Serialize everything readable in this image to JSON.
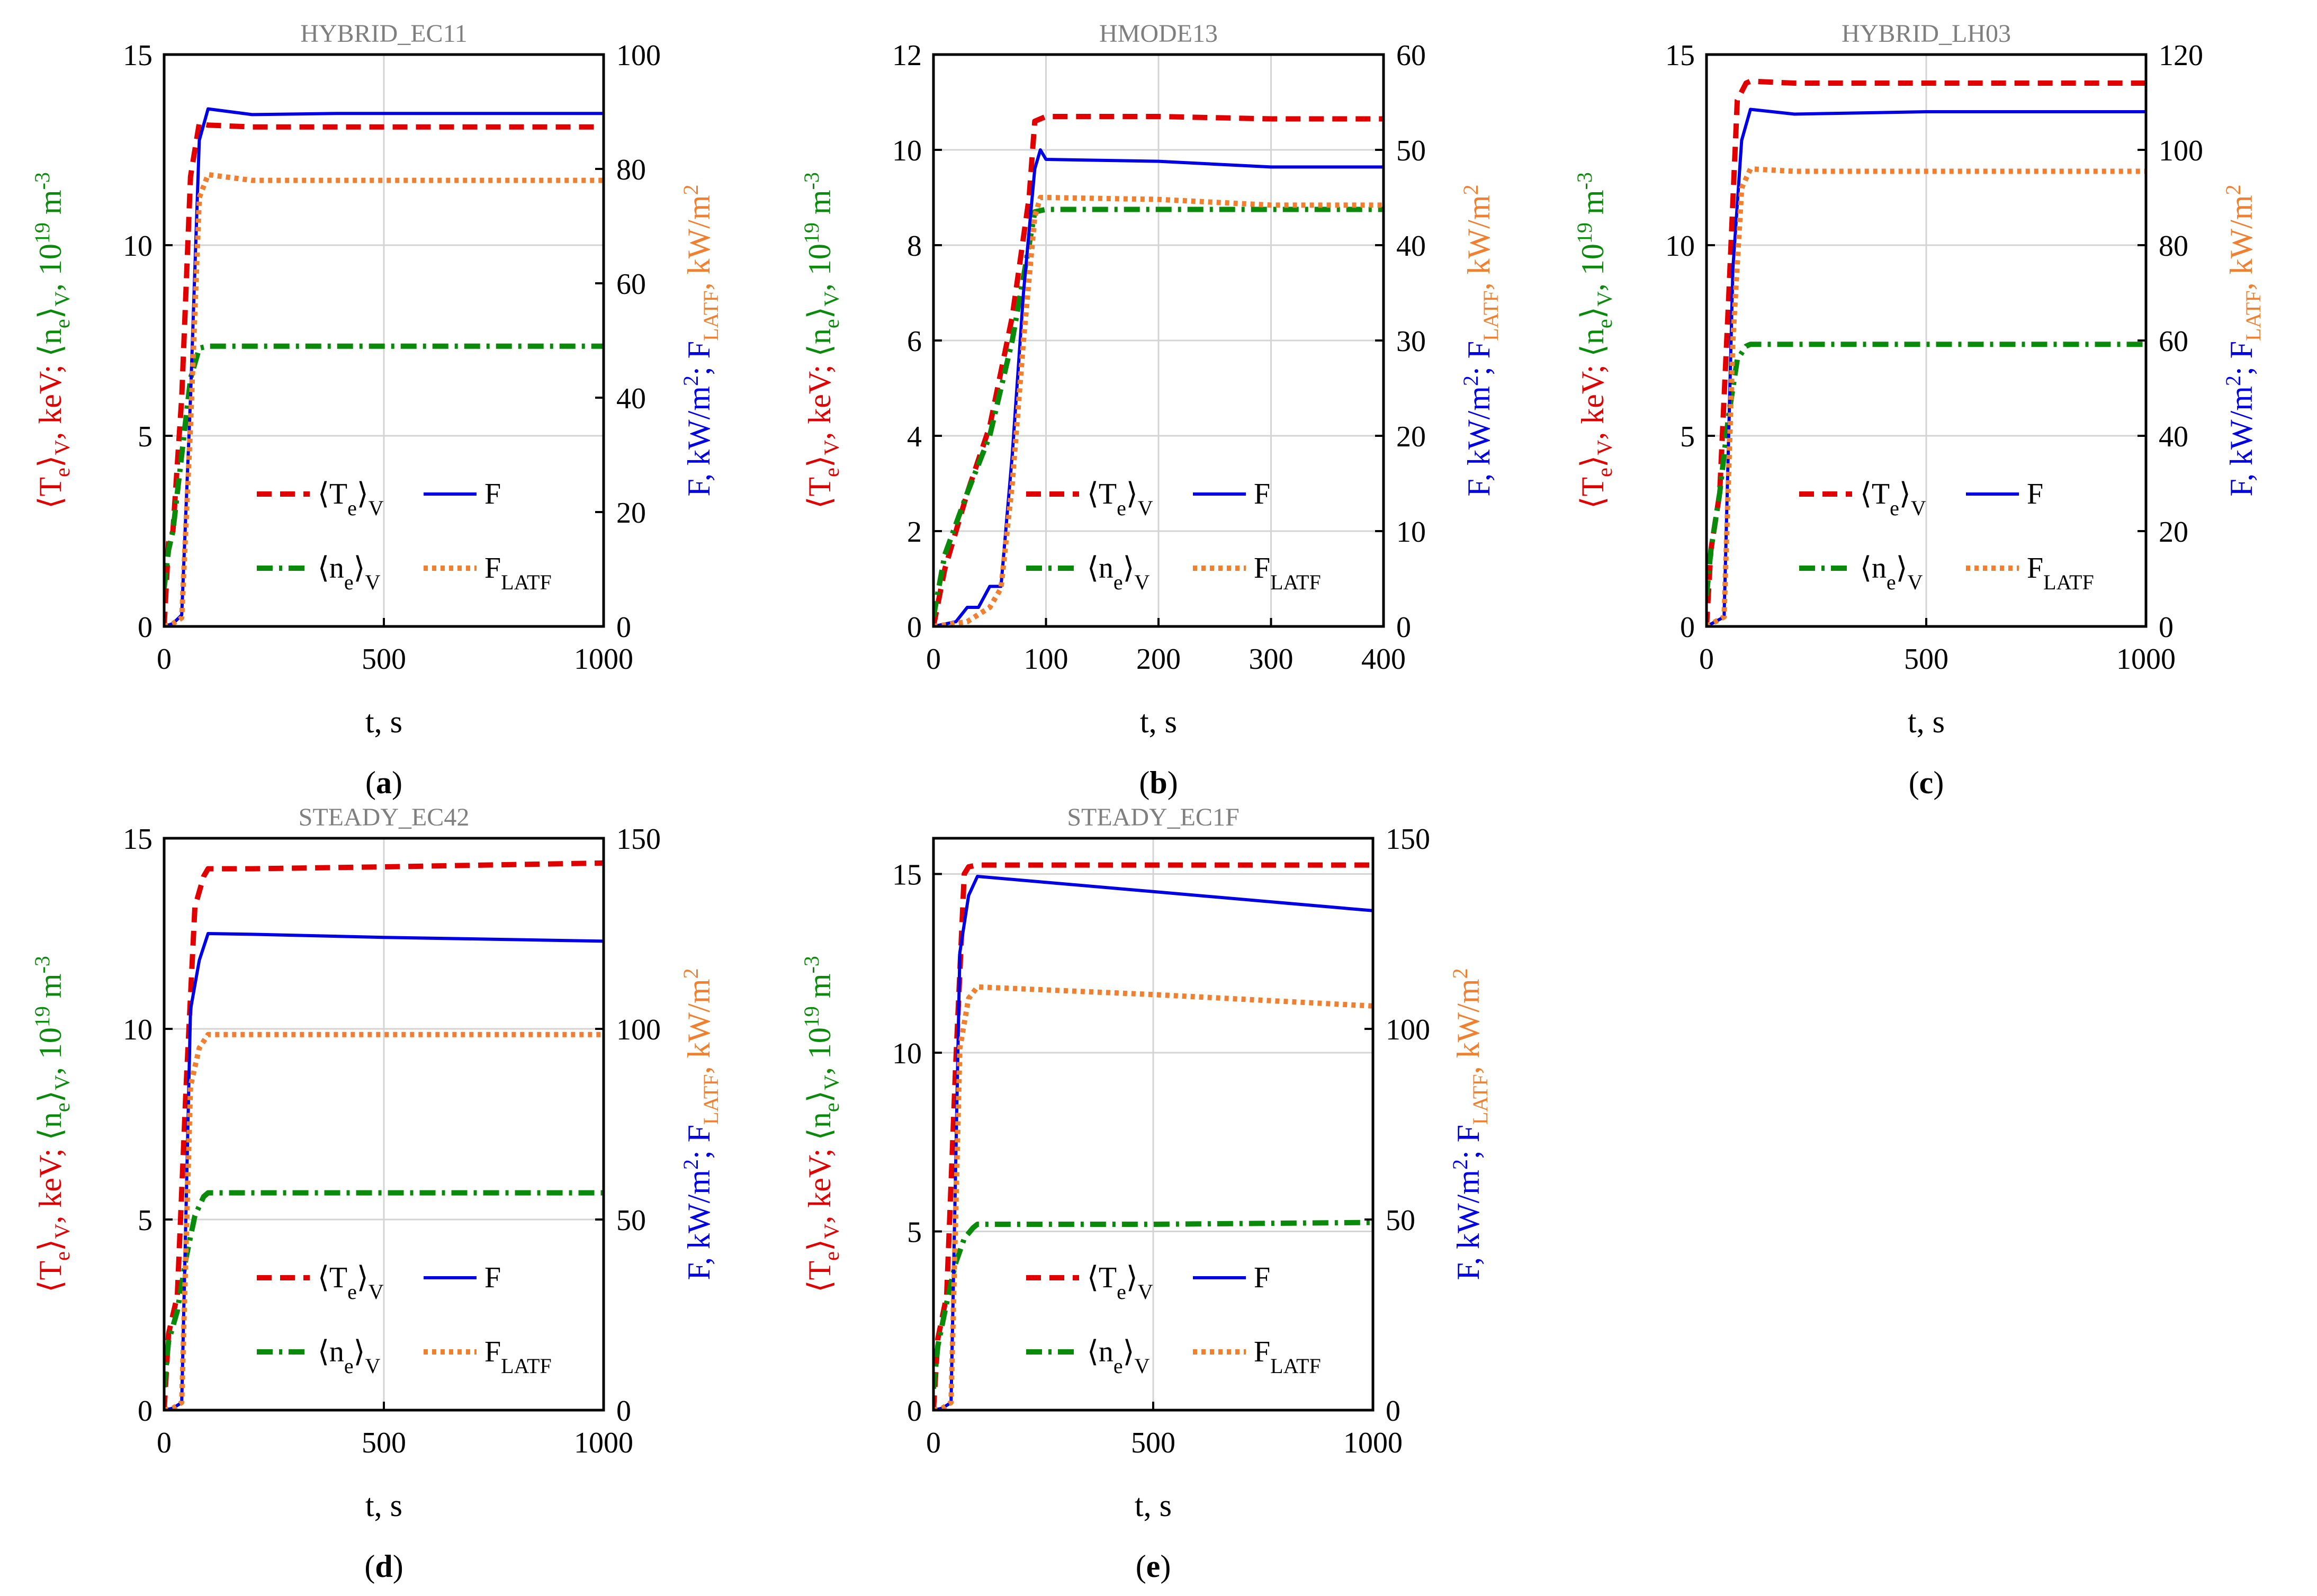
{
  "colors": {
    "T": "#e00000",
    "n": "#0a8a0a",
    "F": "#0000e6",
    "FL": "#f08030",
    "grid": "#d4d4d4",
    "title": "#7f7f7f"
  },
  "labels": {
    "xlabel": "t, s",
    "ylabel_left": {
      "t1": "⟨T",
      "t1s": "e",
      "t2": "⟩",
      "t2s": "V",
      "t3": ", keV; ",
      "t4": "⟨n",
      "t4s": "e",
      "t5": "⟩",
      "t5s": "V",
      "t6": ", 10",
      "t6p": "19",
      "t7": " m",
      "t7p": "-3"
    },
    "ylabel_right": {
      "r1": "F, kW/m",
      "r1p": "2",
      "r2": "; F",
      "r2s": "LATF",
      "r3": ", kW/m",
      "r3p": "2"
    },
    "legend": {
      "T": "⟨T",
      "T_sub": "e",
      "T_close": "⟩",
      "T_subV": "V",
      "n": "⟨n",
      "n_sub": "e",
      "n_close": "⟩",
      "n_subV": "V",
      "F": "F",
      "FL": "F",
      "FL_sub": "LATF"
    }
  },
  "chart_data": [
    {
      "type": "line",
      "title": "HYBRID_EC11",
      "caption_letter": "a",
      "xlabel": "t, s",
      "xlim": [
        0,
        1000
      ],
      "xticks": [
        0,
        500,
        1000
      ],
      "ylim_left": [
        0,
        15
      ],
      "yticks_left": [
        0,
        5,
        10,
        15
      ],
      "ylim_right": [
        0,
        100
      ],
      "yticks_right": [
        0,
        20,
        40,
        60,
        80,
        100
      ],
      "series": [
        {
          "name": "⟨Te⟩V",
          "axis": "left",
          "color": "T",
          "style": "dash",
          "x": [
            0,
            10,
            20,
            40,
            60,
            80,
            100,
            200,
            500,
            1000
          ],
          "y": [
            0,
            2.2,
            2.5,
            6.0,
            11.8,
            13.2,
            13.15,
            13.1,
            13.1,
            13.1
          ]
        },
        {
          "name": "⟨ne⟩V",
          "axis": "left",
          "color": "n",
          "style": "dashdot",
          "x": [
            0,
            10,
            20,
            40,
            60,
            80,
            100,
            200,
            500,
            1000
          ],
          "y": [
            1.0,
            2.0,
            2.5,
            4.5,
            6.5,
            7.3,
            7.35,
            7.35,
            7.35,
            7.35
          ]
        },
        {
          "name": "F",
          "axis": "right",
          "color": "F",
          "style": "solid",
          "x": [
            0,
            20,
            40,
            60,
            80,
            100,
            150,
            200,
            400,
            1000
          ],
          "y": [
            0,
            0.5,
            2,
            40,
            85,
            90.5,
            90,
            89.5,
            89.7,
            89.7
          ]
        },
        {
          "name": "FLATF",
          "axis": "right",
          "color": "FL",
          "style": "dot",
          "x": [
            0,
            20,
            40,
            60,
            80,
            100,
            150,
            200,
            500,
            1000
          ],
          "y": [
            0,
            0.5,
            1.5,
            35,
            75,
            79,
            78.5,
            78,
            78,
            78
          ]
        }
      ]
    },
    {
      "type": "line",
      "title": "HMODE13",
      "caption_letter": "b",
      "xlabel": "t, s",
      "xlim": [
        0,
        400
      ],
      "xticks": [
        0,
        100,
        200,
        300,
        400
      ],
      "ylim_left": [
        0,
        12
      ],
      "yticks_left": [
        0,
        2,
        4,
        6,
        8,
        10,
        12
      ],
      "ylim_right": [
        0,
        60
      ],
      "yticks_right": [
        0,
        10,
        20,
        30,
        40,
        50,
        60
      ],
      "series": [
        {
          "name": "⟨Te⟩V",
          "axis": "left",
          "color": "T",
          "style": "dash",
          "x": [
            0,
            10,
            30,
            50,
            70,
            85,
            90,
            100,
            200,
            300,
            400
          ],
          "y": [
            0,
            1.2,
            2.8,
            4.2,
            6.5,
            9.0,
            10.6,
            10.7,
            10.7,
            10.65,
            10.65
          ]
        },
        {
          "name": "⟨ne⟩V",
          "axis": "left",
          "color": "n",
          "style": "dashdot",
          "x": [
            0,
            10,
            30,
            50,
            70,
            85,
            90,
            100,
            200,
            300,
            400
          ],
          "y": [
            0.2,
            1.5,
            2.8,
            4.0,
            6.0,
            8.0,
            8.7,
            8.75,
            8.75,
            8.75,
            8.75
          ]
        },
        {
          "name": "F",
          "axis": "right",
          "color": "F",
          "style": "solid",
          "x": [
            0,
            20,
            30,
            40,
            50,
            60,
            70,
            80,
            90,
            95,
            100,
            200,
            300,
            400
          ],
          "y": [
            0,
            0.5,
            2,
            2,
            4.2,
            4.2,
            18,
            35,
            48,
            50,
            49,
            48.8,
            48.2,
            48.2
          ]
        },
        {
          "name": "FLATF",
          "axis": "right",
          "color": "FL",
          "style": "dot",
          "x": [
            0,
            30,
            50,
            60,
            70,
            80,
            90,
            95,
            100,
            200,
            300,
            400
          ],
          "y": [
            0,
            0.5,
            2,
            4,
            15,
            30,
            43,
            45,
            45,
            44.8,
            44.2,
            44.2
          ]
        }
      ]
    },
    {
      "type": "line",
      "title": "HYBRID_LH03",
      "caption_letter": "c",
      "xlabel": "t, s",
      "xlim": [
        0,
        1000
      ],
      "xticks": [
        0,
        500,
        1000
      ],
      "ylim_left": [
        0,
        15
      ],
      "yticks_left": [
        0,
        5,
        10,
        15
      ],
      "ylim_right": [
        0,
        120
      ],
      "yticks_right": [
        0,
        20,
        40,
        60,
        80,
        100,
        120
      ],
      "series": [
        {
          "name": "⟨Te⟩V",
          "axis": "left",
          "color": "T",
          "style": "dash",
          "x": [
            0,
            10,
            30,
            50,
            70,
            90,
            100,
            200,
            500,
            1000
          ],
          "y": [
            0,
            2.0,
            3.5,
            8.5,
            13.8,
            14.25,
            14.3,
            14.25,
            14.25,
            14.25
          ]
        },
        {
          "name": "⟨ne⟩V",
          "axis": "left",
          "color": "n",
          "style": "dashdot",
          "x": [
            0,
            10,
            30,
            50,
            70,
            90,
            100,
            200,
            500,
            1000
          ],
          "y": [
            0.8,
            2.0,
            3.5,
            5.5,
            7.0,
            7.35,
            7.4,
            7.4,
            7.4,
            7.4
          ]
        },
        {
          "name": "F",
          "axis": "right",
          "color": "F",
          "style": "solid",
          "x": [
            0,
            20,
            40,
            60,
            80,
            100,
            200,
            500,
            1000
          ],
          "y": [
            0,
            1,
            2,
            75,
            102,
            108.5,
            107.5,
            108,
            108
          ]
        },
        {
          "name": "FLATF",
          "axis": "right",
          "color": "FL",
          "style": "dot",
          "x": [
            0,
            20,
            40,
            60,
            80,
            100,
            200,
            500,
            1000
          ],
          "y": [
            0,
            1,
            2,
            60,
            92,
            96,
            95.5,
            95.5,
            95.5
          ]
        }
      ]
    },
    {
      "type": "line",
      "title": "STEADY_EC42",
      "caption_letter": "d",
      "xlabel": "t, s",
      "xlim": [
        0,
        1000
      ],
      "xticks": [
        0,
        500,
        1000
      ],
      "ylim_left": [
        0,
        15
      ],
      "yticks_left": [
        0,
        5,
        10,
        15
      ],
      "ylim_right": [
        0,
        150
      ],
      "yticks_right": [
        0,
        50,
        100,
        150
      ],
      "series": [
        {
          "name": "⟨Te⟩V",
          "axis": "left",
          "color": "T",
          "style": "dash",
          "x": [
            0,
            10,
            30,
            50,
            70,
            90,
            100,
            200,
            500,
            1000
          ],
          "y": [
            0,
            2.0,
            3.0,
            8.5,
            13.2,
            14.0,
            14.2,
            14.2,
            14.25,
            14.35
          ]
        },
        {
          "name": "⟨ne⟩V",
          "axis": "left",
          "color": "n",
          "style": "dashdot",
          "x": [
            0,
            10,
            30,
            50,
            70,
            90,
            100,
            200,
            500,
            1000
          ],
          "y": [
            0.6,
            1.8,
            2.6,
            4.0,
            5.1,
            5.6,
            5.7,
            5.7,
            5.7,
            5.7
          ]
        },
        {
          "name": "F",
          "axis": "right",
          "color": "F",
          "style": "solid",
          "x": [
            0,
            20,
            40,
            60,
            80,
            100,
            200,
            500,
            1000
          ],
          "y": [
            0,
            0.5,
            2,
            105,
            118,
            125,
            124.8,
            124,
            123
          ]
        },
        {
          "name": "FLATF",
          "axis": "right",
          "color": "FL",
          "style": "dot",
          "x": [
            0,
            20,
            40,
            60,
            80,
            100,
            200,
            500,
            1000
          ],
          "y": [
            0,
            0.5,
            2,
            85,
            95,
            98.5,
            98.5,
            98.5,
            98.5
          ]
        }
      ]
    },
    {
      "type": "line",
      "title": "STEADY_EC1F",
      "caption_letter": "e",
      "xlabel": "t, s",
      "xlim": [
        0,
        1000
      ],
      "xticks": [
        0,
        500,
        1000
      ],
      "ylim_left": [
        0,
        16
      ],
      "yticks_left": [
        0,
        5,
        10,
        15
      ],
      "ylim_right": [
        0,
        150
      ],
      "yticks_right": [
        0,
        50,
        100,
        150
      ],
      "series": [
        {
          "name": "⟨Te⟩V",
          "axis": "left",
          "color": "T",
          "style": "dash",
          "x": [
            0,
            10,
            30,
            50,
            70,
            80,
            100,
            200,
            500,
            1000
          ],
          "y": [
            0,
            2.0,
            3.2,
            9.5,
            15.0,
            15.2,
            15.25,
            15.25,
            15.25,
            15.25
          ]
        },
        {
          "name": "⟨ne⟩V",
          "axis": "left",
          "color": "n",
          "style": "dashdot",
          "x": [
            0,
            10,
            30,
            50,
            70,
            90,
            100,
            200,
            500,
            1000
          ],
          "y": [
            0.6,
            1.8,
            3.0,
            4.1,
            4.8,
            5.1,
            5.2,
            5.2,
            5.2,
            5.25
          ]
        },
        {
          "name": "F",
          "axis": "right",
          "color": "F",
          "style": "solid",
          "x": [
            0,
            20,
            40,
            60,
            80,
            100,
            200,
            500,
            1000
          ],
          "y": [
            0,
            0.5,
            2,
            120,
            135,
            140,
            139,
            136,
            131
          ]
        },
        {
          "name": "FLATF",
          "axis": "right",
          "color": "FL",
          "style": "dot",
          "x": [
            0,
            20,
            40,
            60,
            80,
            100,
            200,
            500,
            1000
          ],
          "y": [
            0,
            0.5,
            2,
            95,
            108,
            111,
            110.5,
            109,
            106
          ]
        }
      ]
    }
  ]
}
